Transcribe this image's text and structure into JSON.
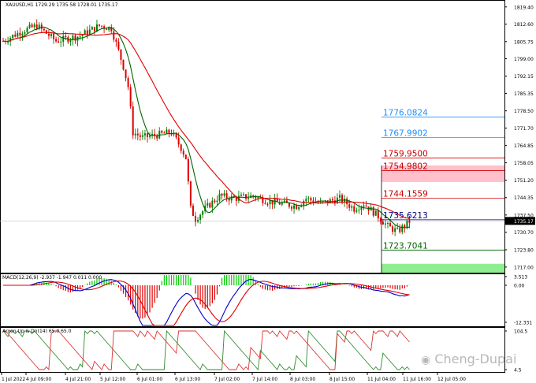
{
  "main_title": "XAUUSD,H1  1729.29 1735.58 1728.01 1735.17",
  "macd_title": "MACD(12,26,9) -2.937 -1.947 0.011 0.000",
  "aroon_title": "Aroon Up & Dn(14) 65.0 65.0",
  "watermark": "Cheng-Dupai",
  "current_price_label": "1735.17",
  "price_axis": [
    "1819.40",
    "1812.60",
    "1805.75",
    "1799.00",
    "1792.15",
    "1785.35",
    "1778.50",
    "1771.70",
    "1764.85",
    "1758.05",
    "1751.20",
    "1744.35",
    "1737.50",
    "1730.70",
    "1723.80",
    "1717.00"
  ],
  "macd_axis": [
    "3.513",
    "0.00",
    "-12.331"
  ],
  "aroon_axis": [
    "104.5",
    "4.5"
  ],
  "time_axis": [
    "1 Jul 2022",
    "4 Jul 09:00",
    "4 Jul 21:00",
    "5 Jul 12:00",
    "6 Jul 01:00",
    "6 Jul 13:00",
    "7 Jul 02:00",
    "7 Jul 14:00",
    "8 Jul 03:00",
    "8 Jul 15:00",
    "11 Jul 04:00",
    "11 Jul 16:00",
    "12 Jul 05:00"
  ],
  "levels": [
    {
      "label": "1776.0824",
      "color": "#1e90ff"
    },
    {
      "label": "1767.9902",
      "color": "#1e90ff"
    },
    {
      "label": "1759.9500",
      "color": "#cc0000"
    },
    {
      "label": "1754.9802",
      "color": "#cc0000"
    },
    {
      "label": "1744.1559",
      "color": "#cc0000"
    },
    {
      "label": "1735.6213",
      "color": "#000080"
    },
    {
      "label": "1723.7041",
      "color": "#006400"
    }
  ],
  "colors": {
    "bull": "#008000",
    "bear": "#dd0000",
    "ma_fast": "#006400",
    "ma_slow": "#e00000",
    "macd_line": "#0000cc",
    "signal_line": "#e00000",
    "zone_red": "#ffc0cb",
    "zone_green": "#90ee90",
    "aroon_up": "#2e8b2e",
    "aroon_dn": "#e03030"
  }
}
